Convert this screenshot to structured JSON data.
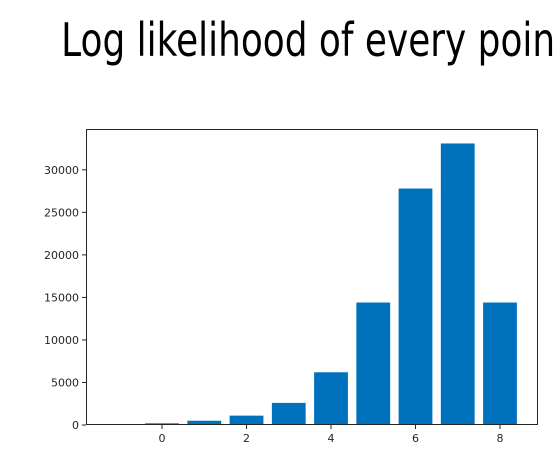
{
  "slide": {
    "title": "Log likelihood of every point"
  },
  "chart_data": {
    "type": "bar",
    "x": [
      0,
      1,
      2,
      3,
      4,
      5,
      6,
      7,
      8
    ],
    "values": [
      200,
      500,
      1100,
      2600,
      6200,
      14400,
      27800,
      33100,
      14400
    ],
    "bar_width": 0.8,
    "xlim": [
      -1.8,
      8.9
    ],
    "ylim": [
      0,
      34800
    ],
    "xticks": [
      0,
      2,
      4,
      6,
      8
    ],
    "yticks": [
      0,
      5000,
      10000,
      15000,
      20000,
      25000,
      30000
    ],
    "title": "",
    "xlabel": "",
    "ylabel": "",
    "grid": false,
    "bar_color": "#0072bd"
  }
}
